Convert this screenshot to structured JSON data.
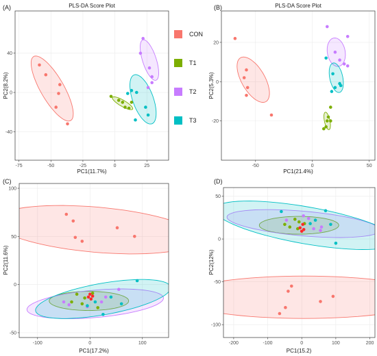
{
  "legend": {
    "position": "right",
    "entries": [
      {
        "label": "CON",
        "color": "#f8766d"
      },
      {
        "label": "T1",
        "color": "#7cae00"
      },
      {
        "label": "T2",
        "color": "#c77cff"
      },
      {
        "label": "T3",
        "color": "#00bfc4"
      }
    ]
  },
  "chart_data": [
    {
      "type": "scatter",
      "panel_label": "(A)",
      "title": "PLS-DA Score Plot",
      "xlabel": "PC1(11.7%)",
      "ylabel": "PC2(8.2%)",
      "xlim": [
        -78,
        42
      ],
      "ylim": [
        -69,
        83
      ],
      "xticks": [
        -75,
        -50,
        -25,
        0,
        25
      ],
      "yticks": [
        -40,
        0,
        40
      ],
      "grid": true,
      "series": [
        {
          "name": "CON",
          "color": "#f8766d",
          "points": [
            [
              -59,
              28
            ],
            [
              -54,
              18
            ],
            [
              -43,
              8
            ],
            [
              -44,
              -1
            ],
            [
              -46,
              -15
            ],
            [
              -37,
              -32
            ]
          ],
          "ellipse": {
            "cx": -49,
            "cy": 4,
            "rx": 54,
            "ry": 17,
            "angle": -60
          }
        },
        {
          "name": "T1",
          "color": "#7cae00",
          "points": [
            [
              -3,
              -4
            ],
            [
              3,
              -8
            ],
            [
              6,
              -10
            ],
            [
              8,
              -15
            ],
            [
              11,
              -16
            ],
            [
              13,
              -10
            ]
          ],
          "ellipse": {
            "cx": 6,
            "cy": -11,
            "rx": 17,
            "ry": 4.5,
            "angle": -30
          }
        },
        {
          "name": "T2",
          "color": "#c77cff",
          "points": [
            [
              22,
              55
            ],
            [
              20,
              40
            ],
            [
              27,
              25
            ],
            [
              29,
              16
            ],
            [
              29,
              10
            ],
            [
              26,
              5
            ]
          ],
          "ellipse": {
            "cx": 27,
            "cy": 33,
            "rx": 31,
            "ry": 10,
            "angle": -72
          }
        },
        {
          "name": "T3",
          "color": "#00bfc4",
          "points": [
            [
              17,
              0
            ],
            [
              13,
              2
            ],
            [
              10,
              -1
            ],
            [
              24,
              -15
            ],
            [
              16,
              -28
            ],
            [
              26,
              -23
            ]
          ],
          "ellipse": {
            "cx": 22,
            "cy": -7,
            "rx": 38,
            "ry": 15,
            "angle": -70
          }
        }
      ]
    },
    {
      "type": "scatter",
      "panel_label": "(B)",
      "title": "PLS-DA Score Plot",
      "xlabel": "PC1(21.4%)",
      "ylabel": "PC2(5.3%)",
      "xlim": [
        -80,
        55
      ],
      "ylim": [
        -40,
        36
      ],
      "xticks": [
        -50,
        0,
        50
      ],
      "yticks": [
        -20,
        0,
        20
      ],
      "grid": true,
      "series": [
        {
          "name": "CON",
          "color": "#f8766d",
          "points": [
            [
              -68,
              22
            ],
            [
              -58,
              6
            ],
            [
              -60,
              2
            ],
            [
              -57,
              -3
            ],
            [
              -58,
              -7
            ],
            [
              -36,
              -17
            ]
          ],
          "ellipse": {
            "cx": -52,
            "cy": 1,
            "rx": 37,
            "ry": 17,
            "angle": -60
          }
        },
        {
          "name": "T1",
          "color": "#7cae00",
          "points": [
            [
              16,
              -13
            ],
            [
              14,
              -18
            ],
            [
              13,
              -20
            ],
            [
              12,
              -23
            ],
            [
              10,
              -24
            ],
            [
              16,
              -20
            ]
          ],
          "ellipse": {
            "cx": 13,
            "cy": -20,
            "rx": 13,
            "ry": 4,
            "angle": -78
          }
        },
        {
          "name": "T2",
          "color": "#c77cff",
          "points": [
            [
              13,
              28
            ],
            [
              20,
              15
            ],
            [
              31,
              23
            ],
            [
              24,
              11
            ],
            [
              31,
              8
            ],
            [
              28,
              9
            ]
          ],
          "ellipse": {
            "cx": 21,
            "cy": 15,
            "rx": 21,
            "ry": 13,
            "angle": -80
          }
        },
        {
          "name": "T3",
          "color": "#00bfc4",
          "points": [
            [
              12,
              12
            ],
            [
              18,
              4
            ],
            [
              24,
              -1
            ],
            [
              25,
              -2
            ],
            [
              20,
              -3
            ],
            [
              17,
              -5
            ]
          ],
          "ellipse": {
            "cx": 21,
            "cy": 2,
            "rx": 22,
            "ry": 9.5,
            "angle": -78
          }
        }
      ]
    },
    {
      "type": "scatter",
      "panel_label": "(C)",
      "title": "",
      "xlabel": "PC1(17.2%)",
      "ylabel": "PC2(11.6%)",
      "xlim": [
        -135,
        150
      ],
      "ylim": [
        -55,
        105
      ],
      "xticks": [
        -100,
        0,
        100
      ],
      "yticks": [
        -50,
        0,
        50,
        100
      ],
      "grid": true,
      "series": [
        {
          "name": "CON",
          "color": "#f8766d",
          "points": [
            [
              -45,
              73
            ],
            [
              -32,
              66
            ],
            [
              -28,
              49
            ],
            [
              -15,
              45
            ],
            [
              52,
              59
            ],
            [
              85,
              50
            ]
          ],
          "ellipse": {
            "cx": 12,
            "cy": 57,
            "rx": 150,
            "ry": 33,
            "angle": -5
          }
        },
        {
          "name": "T1",
          "color": "#7cae00",
          "points": [
            [
              -35,
              -18
            ],
            [
              -25,
              -10
            ],
            [
              -10,
              -14
            ],
            [
              5,
              -9
            ],
            [
              -15,
              -20
            ],
            [
              15,
              -24
            ]
          ],
          "ellipse": {
            "cx": -2,
            "cy": -17,
            "rx": 58,
            "ry": 14,
            "angle": 0
          }
        },
        {
          "name": "T2",
          "color": "#c77cff",
          "points": [
            [
              -50,
              -18
            ],
            [
              -40,
              -21
            ],
            [
              -5,
              -23
            ],
            [
              30,
              -13
            ],
            [
              55,
              -5
            ],
            [
              22,
              -18
            ]
          ],
          "ellipse": {
            "cx": 10,
            "cy": -20,
            "rx": 100,
            "ry": 20,
            "angle": 5
          }
        },
        {
          "name": "T3",
          "color": "#00bfc4",
          "points": [
            [
              90,
              4
            ],
            [
              60,
              -20
            ],
            [
              25,
              -31
            ],
            [
              -5,
              -22
            ],
            [
              10,
              -18
            ],
            [
              40,
              -13
            ]
          ],
          "ellipse": {
            "cx": 25,
            "cy": -15,
            "rx": 100,
            "ry": 23,
            "angle": 10
          }
        },
        {
          "name": "",
          "color": "#ff2a2a",
          "points": [
            [
              0,
              -10
            ],
            [
              5,
              -12
            ],
            [
              2,
              -15
            ],
            [
              -3,
              -13
            ]
          ]
        }
      ]
    },
    {
      "type": "scatter",
      "panel_label": "(D)",
      "title": "",
      "xlabel": "PC1(15.2)",
      "ylabel": "PC2(12%)",
      "xlim": [
        -230,
        215
      ],
      "ylim": [
        -115,
        60
      ],
      "xticks": [
        -200,
        -100,
        0,
        100,
        200
      ],
      "yticks": [
        -100,
        -50,
        0,
        50
      ],
      "grid": true,
      "series": [
        {
          "name": "CON",
          "color": "#f8766d",
          "points": [
            [
              -30,
              -55
            ],
            [
              -40,
              -61
            ],
            [
              -65,
              -87
            ],
            [
              -48,
              -80
            ],
            [
              55,
              -73
            ],
            [
              92,
              -67
            ]
          ],
          "ellipse": {
            "cx": 7,
            "cy": -68,
            "rx": 185,
            "ry": 31,
            "angle": 0
          }
        },
        {
          "name": "T1",
          "color": "#7cae00",
          "points": [
            [
              -50,
              17
            ],
            [
              -35,
              14
            ],
            [
              -12,
              12
            ],
            [
              -8,
              20
            ],
            [
              8,
              18
            ],
            [
              -20,
              23
            ]
          ],
          "ellipse": {
            "cx": -8,
            "cy": 16,
            "rx": 58,
            "ry": 13,
            "angle": 0
          }
        },
        {
          "name": "T2",
          "color": "#c77cff",
          "points": [
            [
              -45,
              22
            ],
            [
              5,
              27
            ],
            [
              20,
              24
            ],
            [
              55,
              10
            ],
            [
              58,
              14
            ],
            [
              35,
              12
            ]
          ],
          "ellipse": {
            "cx": 5,
            "cy": 18,
            "rx": 112,
            "ry": 18,
            "angle": -5
          }
        },
        {
          "name": "T3",
          "color": "#00bfc4",
          "points": [
            [
              -60,
              32
            ],
            [
              25,
              18
            ],
            [
              40,
              22
            ],
            [
              70,
              33
            ],
            [
              85,
              17
            ],
            [
              100,
              -5
            ]
          ],
          "ellipse": {
            "cx": 12,
            "cy": 16,
            "rx": 135,
            "ry": 27,
            "angle": -10
          }
        },
        {
          "name": "",
          "color": "#ff2a2a",
          "points": [
            [
              -5,
              13
            ],
            [
              3,
              17
            ],
            [
              0,
              9
            ],
            [
              6,
              11
            ]
          ]
        }
      ]
    }
  ]
}
